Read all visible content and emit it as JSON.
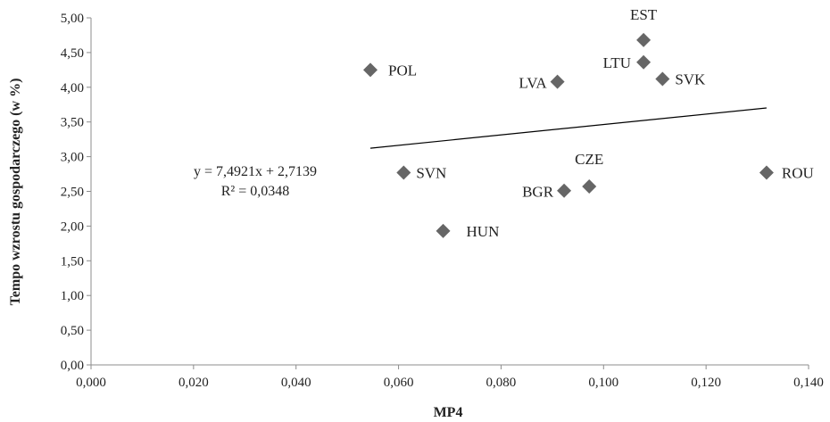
{
  "chart_data": {
    "type": "scatter",
    "title": "",
    "xlabel": "MP4",
    "ylabel": "Tempo wzrostu gospodarczego (w %)",
    "xlim": [
      0.0,
      0.14
    ],
    "ylim": [
      0.0,
      5.0
    ],
    "x_ticks": [
      "0,000",
      "0,020",
      "0,040",
      "0,060",
      "0,080",
      "0,100",
      "0,120",
      "0,140"
    ],
    "y_ticks": [
      "0,00",
      "0,50",
      "1,00",
      "1,50",
      "2,00",
      "2,50",
      "3,00",
      "3,50",
      "4,00",
      "4,50",
      "5,00"
    ],
    "grid": false,
    "legend": "none",
    "marker": "diamond",
    "marker_color": "#666666",
    "points": [
      {
        "label": "POL",
        "x": 0.0545,
        "y": 4.25
      },
      {
        "label": "SVN",
        "x": 0.061,
        "y": 2.77
      },
      {
        "label": "HUN",
        "x": 0.0687,
        "y": 1.93
      },
      {
        "label": "LVA",
        "x": 0.091,
        "y": 4.08
      },
      {
        "label": "BGR",
        "x": 0.0923,
        "y": 2.51
      },
      {
        "label": "CZE",
        "x": 0.0972,
        "y": 2.57
      },
      {
        "label": "EST",
        "x": 0.1078,
        "y": 4.68
      },
      {
        "label": "LTU",
        "x": 0.1078,
        "y": 4.36
      },
      {
        "label": "SVK",
        "x": 0.1115,
        "y": 4.12
      },
      {
        "label": "ROU",
        "x": 0.1318,
        "y": 2.77
      }
    ],
    "trendline": {
      "slope": 7.4921,
      "intercept": 2.7139,
      "x_range": [
        0.0545,
        0.1318
      ],
      "equation": "y = 7,4921x + 2,7139",
      "r_squared": "R² = 0,0348"
    }
  }
}
